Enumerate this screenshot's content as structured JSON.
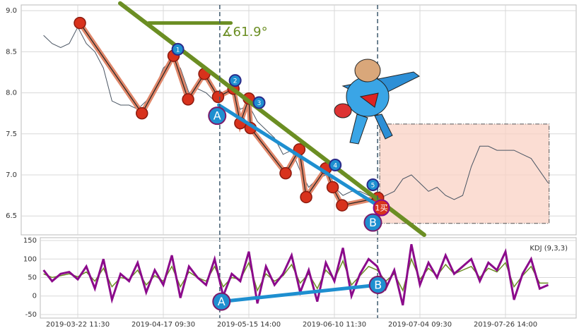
{
  "chart_data": [
    {
      "type": "line",
      "color": "#4a5563",
      "categories": [
        null,
        null,
        null,
        null,
        "2019-03-22 11:30",
        null,
        null,
        null,
        null,
        null,
        null,
        null,
        null,
        null,
        "2019-04-17 09:30",
        null,
        null,
        null,
        null,
        null,
        null,
        null,
        null,
        null,
        "2019-05-15 14:00",
        null,
        null,
        null,
        null,
        null,
        null,
        null,
        null,
        null,
        "2019-06-10 11:30",
        null,
        null,
        null,
        null,
        null,
        null,
        null,
        null,
        null,
        "2019-07-04 09:30",
        null,
        null,
        null,
        null,
        null,
        null,
        null,
        null,
        null,
        "2019-07-26 14:00",
        null,
        null,
        null,
        null,
        null
      ],
      "values": [
        8.7,
        8.6,
        8.55,
        8.6,
        8.8,
        8.6,
        8.5,
        8.3,
        7.9,
        7.85,
        7.85,
        7.8,
        7.9,
        8.05,
        8.3,
        8.4,
        8.3,
        8.0,
        8.05,
        8.0,
        7.9,
        7.95,
        8.05,
        7.8,
        7.85,
        7.65,
        7.55,
        7.45,
        7.25,
        7.3,
        7.05,
        6.85,
        6.95,
        7.0,
        6.85,
        6.75,
        6.8,
        6.8,
        6.75,
        6.7,
        6.75,
        6.8,
        6.95,
        7.0,
        6.9,
        6.8,
        6.85,
        6.75,
        6.7,
        6.75,
        7.1,
        7.35,
        7.35,
        7.3,
        7.3,
        7.3,
        7.25,
        7.2,
        7.05,
        6.9
      ],
      "ylim": [
        6.27,
        9.07
      ],
      "yticks": [
        6.5,
        {
          "value": 7.0,
          "label": "7.0"
        },
        7.5,
        {
          "value": 8.0,
          "label": "8.0"
        },
        8.5,
        {
          "value": 9.0,
          "label": "9.0"
        }
      ],
      "grid": true,
      "zigzag": {
        "color": "#e0876a",
        "x": [
          4.25,
          11.5,
          15.2,
          16.9,
          18.8,
          20.4,
          22.2,
          23.0,
          24.0,
          24.2,
          28.3,
          29.9,
          30.7,
          33.0,
          33.8,
          34.9,
          39.1
        ],
        "values": [
          8.85,
          7.75,
          8.45,
          7.92,
          8.23,
          7.95,
          8.05,
          7.63,
          7.93,
          7.57,
          7.02,
          7.31,
          6.73,
          7.08,
          6.85,
          6.63,
          6.72
        ]
      },
      "trend_line": {
        "color": "#6b8e23",
        "x": [
          8.96,
          44.5
        ],
        "values": [
          9.09,
          6.27
        ]
      },
      "level_line": {
        "color": "#6b8e23",
        "x": [
          12.3,
          21.9
        ],
        "values": [
          8.85,
          8.85
        ]
      },
      "ab_line": {
        "color": "#1e8fd0",
        "x": [
          20.5,
          39.5
        ],
        "values": [
          7.85,
          6.6
        ]
      },
      "box": {
        "color": "#f9d2c4",
        "x": [
          39.3,
          59.1
        ],
        "values": [
          7.62,
          6.41
        ]
      },
      "vlines": [
        20.6,
        39.05
      ],
      "angle_label": "∡61.9°",
      "ab_points": [
        {
          "label": "A",
          "x": 20.3,
          "value": 7.72
        },
        {
          "label": "B",
          "x": 38.5,
          "value": 6.42
        }
      ],
      "wave_points": [
        {
          "label": "1",
          "x": 15.7,
          "value": 8.53
        },
        {
          "label": "2",
          "x": 22.4,
          "value": 8.15
        },
        {
          "label": "3",
          "x": 25.2,
          "value": 7.88
        },
        {
          "label": "4",
          "x": 34.1,
          "value": 7.12
        },
        {
          "label": "5",
          "x": 38.5,
          "value": 6.88
        }
      ],
      "buy_point": {
        "label": "1买",
        "x": 39.5,
        "value": 6.6
      }
    },
    {
      "type": "line",
      "title": "KDJ (9,3,3)",
      "series": [
        {
          "color": "#6b8e23",
          "values": [
            60,
            50,
            55,
            60,
            52,
            65,
            40,
            75,
            25,
            50,
            45,
            70,
            30,
            55,
            40,
            80,
            25,
            65,
            50,
            40,
            80,
            25,
            50,
            45,
            90,
            15,
            60,
            40,
            55,
            85,
            35,
            60,
            20,
            70,
            45,
            95,
            30,
            55,
            80,
            70,
            40,
            60,
            15,
            100,
            45,
            75,
            55,
            85,
            60,
            70,
            80,
            50,
            75,
            65,
            90,
            25,
            55,
            80,
            35,
            35
          ]
        },
        {
          "color": "#8b0a8b",
          "values": [
            70,
            40,
            60,
            65,
            45,
            80,
            20,
            100,
            -10,
            60,
            40,
            90,
            10,
            70,
            30,
            110,
            -5,
            80,
            50,
            30,
            100,
            0,
            60,
            40,
            120,
            -20,
            80,
            30,
            60,
            110,
            10,
            70,
            -15,
            90,
            40,
            130,
            0,
            60,
            100,
            80,
            20,
            70,
            -25,
            140,
            30,
            90,
            50,
            110,
            60,
            80,
            100,
            40,
            90,
            70,
            120,
            -10,
            60,
            100,
            20,
            30
          ]
        }
      ],
      "ylim": [
        -59.6,
        157.7
      ],
      "yticks": [
        -50,
        0,
        50,
        100,
        150
      ],
      "grid": true,
      "ab_line": {
        "color": "#1e8fd0",
        "x": [
          20.8,
          39.1
        ],
        "values": [
          -15,
          30
        ]
      },
      "ab_points": [
        {
          "label": "A",
          "x": 20.8,
          "value": -15
        },
        {
          "label": "B",
          "x": 39.1,
          "value": 30
        }
      ]
    }
  ]
}
